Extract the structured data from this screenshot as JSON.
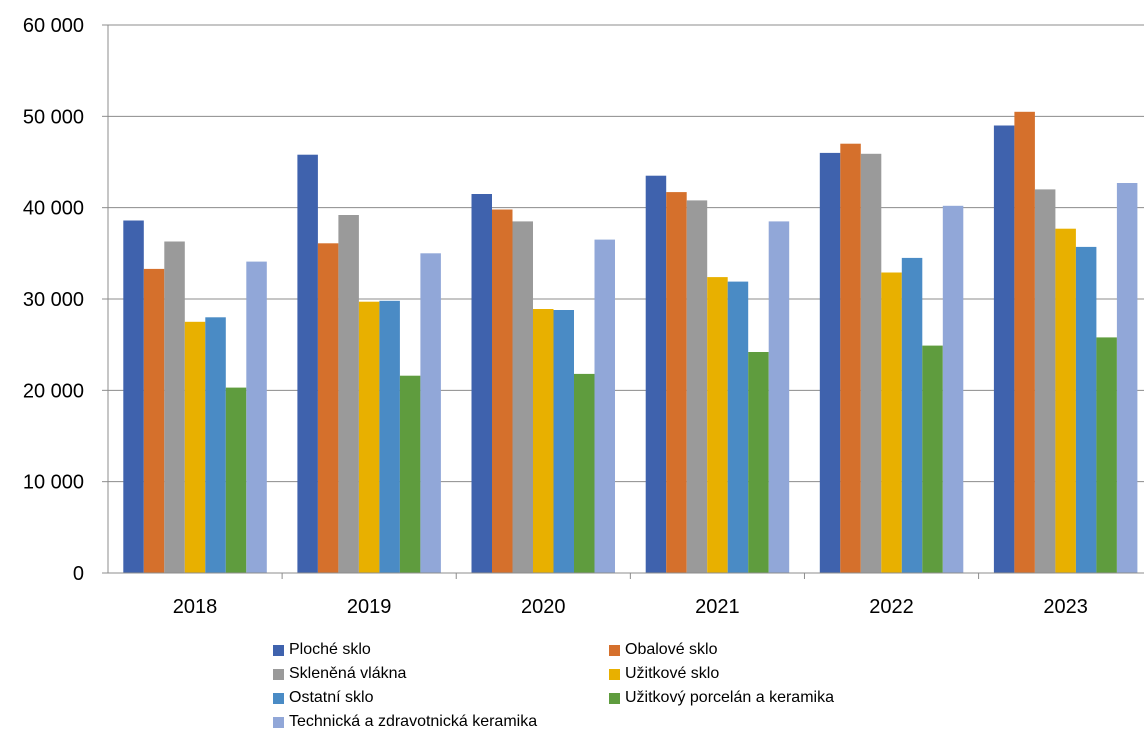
{
  "chart_data": {
    "type": "bar",
    "title": "",
    "xlabel": "",
    "ylabel": "",
    "ylim": [
      0,
      60000
    ],
    "yticks": [
      0,
      10000,
      20000,
      30000,
      40000,
      50000,
      60000
    ],
    "ytick_labels": [
      "0",
      "10 000",
      "20 000",
      "30 000",
      "40 000",
      "50 000",
      "60 000"
    ],
    "grid": true,
    "legend_position": "bottom",
    "categories": [
      "2018",
      "2019",
      "2020",
      "2021",
      "2022",
      "2023"
    ],
    "series": [
      {
        "name": "Ploché sklo",
        "color": "#3f62ad",
        "values": [
          38600,
          45800,
          41500,
          43500,
          46000,
          49000
        ]
      },
      {
        "name": "Obalové sklo",
        "color": "#d5702c",
        "values": [
          33300,
          36100,
          39800,
          41700,
          47000,
          50500
        ]
      },
      {
        "name": "Skleněná vlákna",
        "color": "#9a9a9a",
        "values": [
          36300,
          39200,
          38500,
          40800,
          45900,
          42000
        ]
      },
      {
        "name": "Užitkové sklo",
        "color": "#e8b000",
        "values": [
          27500,
          29700,
          28900,
          32400,
          32900,
          37700
        ]
      },
      {
        "name": "Ostatní sklo",
        "color": "#4a8bc5",
        "values": [
          28000,
          29800,
          28800,
          31900,
          34500,
          35700
        ]
      },
      {
        "name": "Užitkový porcelán a keramika",
        "color": "#5f9c3e",
        "values": [
          20300,
          21600,
          21800,
          24200,
          24900,
          25800
        ]
      },
      {
        "name": "Technická a zdravotnická keramika",
        "color": "#91a7d8",
        "values": [
          34100,
          35000,
          36500,
          38500,
          40200,
          42700
        ]
      }
    ]
  }
}
